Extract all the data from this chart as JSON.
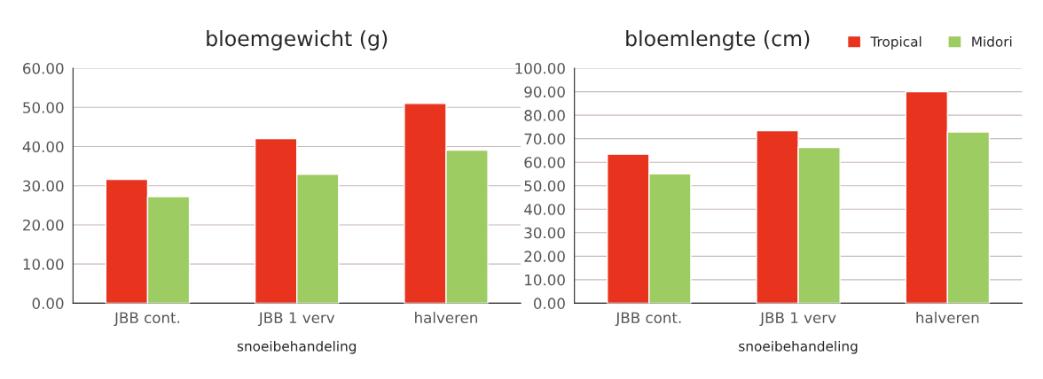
{
  "chart_data": [
    {
      "type": "bar",
      "title": "bloemgewicht (g)",
      "xlabel": "snoeibehandeling",
      "categories": [
        "JBB cont.",
        "JBB 1 verv",
        "halveren"
      ],
      "series": [
        {
          "color": "#e8341f",
          "values": [
            31.6,
            42.0,
            51.0
          ]
        },
        {
          "color": "#9ccc62",
          "values": [
            27.2,
            32.9,
            39.1
          ]
        }
      ],
      "ylim": [
        0,
        60
      ],
      "yticks": [
        {
          "value": 0,
          "label": "0.00"
        },
        {
          "value": 10,
          "label": "10.00"
        },
        {
          "value": 20,
          "label": "20.00"
        },
        {
          "value": 30,
          "label": "30.00"
        },
        {
          "value": 40,
          "label": "40.00"
        },
        {
          "value": 50,
          "label": "50.00"
        },
        {
          "value": 60,
          "label": "60.00"
        }
      ],
      "grid": "y"
    },
    {
      "type": "bar",
      "title": "bloemlengte (cm)",
      "xlabel": "snoeibehandeling",
      "categories": [
        "JBB cont.",
        "JBB 1 verv",
        "halveren"
      ],
      "series": [
        {
          "name": "Tropical",
          "color": "#e8341f",
          "values": [
            63.4,
            73.4,
            90.0
          ]
        },
        {
          "name": "Midori",
          "color": "#9ccc62",
          "values": [
            55.1,
            66.3,
            72.9
          ]
        }
      ],
      "ylim": [
        0,
        100
      ],
      "yticks": [
        {
          "value": 0,
          "label": "0.00"
        },
        {
          "value": 10,
          "label": "10.00"
        },
        {
          "value": 20,
          "label": "20.00"
        },
        {
          "value": 30,
          "label": "30.00"
        },
        {
          "value": 40,
          "label": "40.00"
        },
        {
          "value": 50,
          "label": "50.00"
        },
        {
          "value": 60,
          "label": "60.00"
        },
        {
          "value": 70,
          "label": "70.00"
        },
        {
          "value": 80,
          "label": "80.00"
        },
        {
          "value": 90,
          "label": "90.00"
        },
        {
          "value": 100,
          "label": "100.00"
        }
      ],
      "grid": "y",
      "legend": "top right"
    }
  ]
}
